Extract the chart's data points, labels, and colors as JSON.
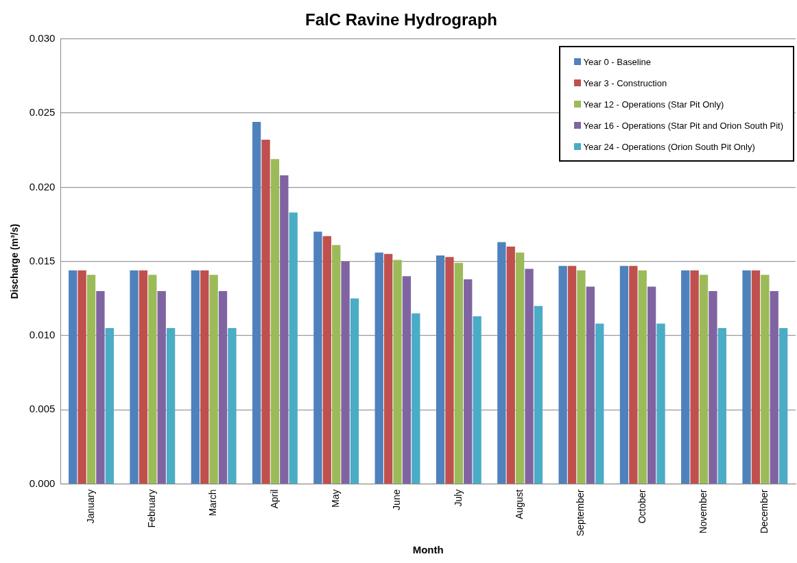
{
  "chart_data": {
    "type": "bar",
    "title": "FalC Ravine Hydrograph",
    "xlabel": "Month",
    "ylabel": "Discharge (m³/s)",
    "categories": [
      "January",
      "February",
      "March",
      "April",
      "May",
      "June",
      "July",
      "August",
      "September",
      "October",
      "November",
      "December"
    ],
    "series": [
      {
        "name": "Year 0 - Baseline",
        "color": "#4f81bd",
        "values": [
          0.0144,
          0.0144,
          0.0144,
          0.0244,
          0.017,
          0.0156,
          0.0154,
          0.0163,
          0.0147,
          0.0147,
          0.0144,
          0.0144
        ]
      },
      {
        "name": "Year 3 - Construction",
        "color": "#c0504d",
        "values": [
          0.0144,
          0.0144,
          0.0144,
          0.0232,
          0.0167,
          0.0155,
          0.0153,
          0.016,
          0.0147,
          0.0147,
          0.0144,
          0.0144
        ]
      },
      {
        "name": "Year 12 - Operations (Star Pit Only)",
        "color": "#9bbb59",
        "values": [
          0.0141,
          0.0141,
          0.0141,
          0.0219,
          0.0161,
          0.0151,
          0.0149,
          0.0156,
          0.0144,
          0.0144,
          0.0141,
          0.0141
        ]
      },
      {
        "name": "Year 16 - Operations (Star Pit and Orion South Pit)",
        "color": "#8064a2",
        "values": [
          0.013,
          0.013,
          0.013,
          0.0208,
          0.015,
          0.014,
          0.0138,
          0.0145,
          0.0133,
          0.0133,
          0.013,
          0.013
        ]
      },
      {
        "name": "Year 24 - Operations (Orion South Pit Only)",
        "color": "#4bacc6",
        "values": [
          0.0105,
          0.0105,
          0.0105,
          0.0183,
          0.0125,
          0.0115,
          0.0113,
          0.012,
          0.0108,
          0.0108,
          0.0105,
          0.0105
        ]
      }
    ],
    "ylim": [
      0,
      0.03
    ],
    "yticks": [
      {
        "value": 0,
        "label": "0.000"
      },
      {
        "value": 0.005,
        "label": "0.005"
      },
      {
        "value": 0.01,
        "label": "0.010"
      },
      {
        "value": 0.015,
        "label": "0.015"
      },
      {
        "value": 0.02,
        "label": "0.020"
      },
      {
        "value": 0.025,
        "label": "0.025"
      },
      {
        "value": 0.03,
        "label": "0.030"
      }
    ],
    "grid": "y",
    "legend": "top right"
  }
}
